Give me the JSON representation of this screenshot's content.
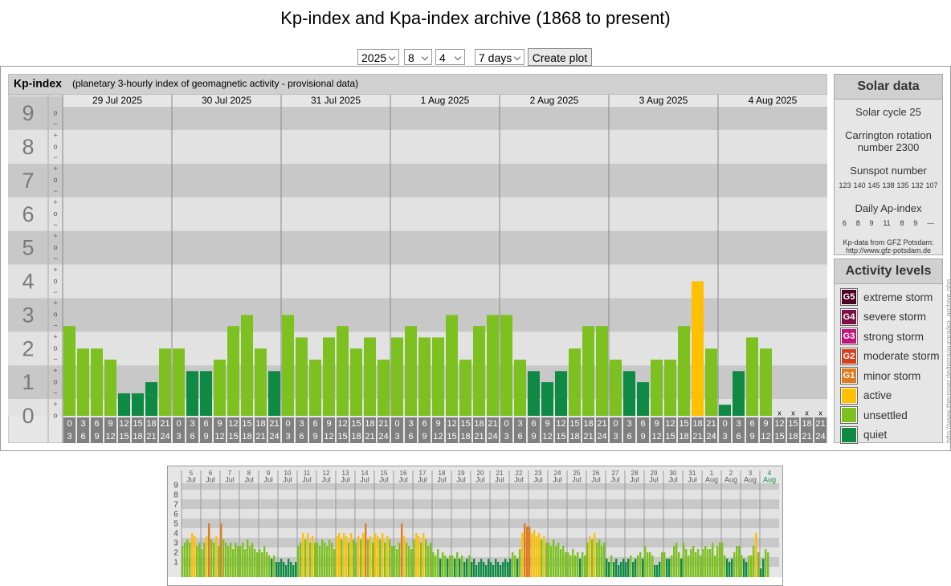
{
  "page": {
    "title": "Kp-index and Kpa-index archive (1868 to present)",
    "controls": {
      "year": "2025",
      "month": "8",
      "day": "4",
      "range": "7 days",
      "button": "Create plot"
    },
    "side_note": "http://www.theusner.de/terra/aurora/kp_archive.php"
  },
  "chart_data": [
    {
      "type": "bar",
      "title": "Kp-index",
      "subtitle": "(planetary 3-hourly index of geomagnetic activity - provisional data)",
      "ylim": [
        0,
        9
      ],
      "yticks": [
        0,
        1,
        2,
        3,
        4,
        5,
        6,
        7,
        8,
        9
      ],
      "subticks": [
        "+",
        "o",
        "−"
      ],
      "dates": [
        "29 Jul 2025",
        "30 Jul 2025",
        "31 Jul 2025",
        "1 Aug 2025",
        "2 Aug 2025",
        "3 Aug 2025",
        "4 Aug 2025"
      ],
      "hours": [
        [
          "0",
          "3"
        ],
        [
          "3",
          "6"
        ],
        [
          "6",
          "9"
        ],
        [
          "9",
          "12"
        ],
        [
          "12",
          "15"
        ],
        [
          "15",
          "18"
        ],
        [
          "18",
          "21"
        ],
        [
          "21",
          "24"
        ]
      ],
      "missing_label": "x",
      "values": [
        [
          2.67,
          2,
          2,
          1.67,
          0.67,
          0.67,
          1,
          2
        ],
        [
          2,
          1.33,
          1.33,
          1.67,
          2.67,
          3,
          2,
          1.33
        ],
        [
          3,
          2.33,
          1.67,
          2.33,
          2.67,
          2,
          2.33,
          1.67
        ],
        [
          2.33,
          2.67,
          2.33,
          2.33,
          3,
          1.67,
          2.67,
          3
        ],
        [
          3,
          1.67,
          1.33,
          1,
          1.33,
          2,
          2.67,
          2.67
        ],
        [
          1.67,
          1.33,
          1,
          1.67,
          1.67,
          2.67,
          4,
          2
        ],
        [
          0.33,
          1.33,
          2.33,
          2,
          null,
          null,
          null,
          null
        ]
      ]
    },
    {
      "type": "bar",
      "ylim": [
        0,
        9
      ],
      "yticks": [
        1,
        2,
        3,
        4,
        5,
        6,
        7,
        8,
        9
      ],
      "dates": [
        [
          "5",
          "Jul"
        ],
        [
          "6",
          "Jul"
        ],
        [
          "7",
          "Jul"
        ],
        [
          "8",
          "Jul"
        ],
        [
          "9",
          "Jul"
        ],
        [
          "10",
          "Jul"
        ],
        [
          "11",
          "Jul"
        ],
        [
          "12",
          "Jul"
        ],
        [
          "13",
          "Jul"
        ],
        [
          "14",
          "Jul"
        ],
        [
          "15",
          "Jul"
        ],
        [
          "16",
          "Jul"
        ],
        [
          "17",
          "Jul"
        ],
        [
          "18",
          "Jul"
        ],
        [
          "19",
          "Jul"
        ],
        [
          "20",
          "Jul"
        ],
        [
          "21",
          "Jul"
        ],
        [
          "22",
          "Jul"
        ],
        [
          "23",
          "Jul"
        ],
        [
          "24",
          "Jul"
        ],
        [
          "25",
          "Jul"
        ],
        [
          "26",
          "Jul"
        ],
        [
          "27",
          "Jul"
        ],
        [
          "28",
          "Jul"
        ],
        [
          "29",
          "Jul"
        ],
        [
          "30",
          "Jul"
        ],
        [
          "31",
          "Jul"
        ],
        [
          "1",
          "Aug"
        ],
        [
          "2",
          "Aug"
        ],
        [
          "3",
          "Aug"
        ],
        [
          "4",
          "Aug"
        ]
      ],
      "values": [
        [
          2.67,
          3,
          3.33,
          3,
          4,
          3.67,
          2.67,
          3
        ],
        [
          2.33,
          3,
          3.67,
          5,
          3.33,
          3,
          3.67,
          2.67
        ],
        [
          5,
          3.33,
          3,
          2.67,
          3,
          2.33,
          3,
          2.67
        ],
        [
          2.67,
          3,
          2.33,
          3.33,
          2.67,
          3,
          2.33,
          2
        ],
        [
          2.33,
          2,
          2.67,
          2,
          1.67,
          1.33,
          1.67,
          1
        ],
        [
          1,
          1.33,
          1,
          0.67,
          1.33,
          1,
          0.67,
          1
        ],
        [
          2.67,
          3,
          4,
          3.33,
          4,
          3,
          3.67,
          3
        ],
        [
          3,
          2.67,
          3.33,
          3,
          2.67,
          3.33,
          3,
          2.33
        ],
        [
          3.67,
          4,
          3.33,
          4,
          3.67,
          3,
          4,
          3.33
        ],
        [
          3,
          3.67,
          3.33,
          4,
          5,
          3.33,
          3.67,
          3
        ],
        [
          4,
          3.67,
          3.33,
          4,
          3,
          3.67,
          3.33,
          2.67
        ],
        [
          2.67,
          2.33,
          3,
          5,
          3.67,
          3,
          2.67,
          2.33
        ],
        [
          3.33,
          4,
          3.67,
          3,
          4,
          3.33,
          2.67,
          3
        ],
        [
          2,
          1.67,
          2.33,
          1.33,
          2,
          1.67,
          1.33,
          1.67
        ],
        [
          1.67,
          1.33,
          2,
          1.33,
          1.67,
          1,
          1.33,
          1.67
        ],
        [
          1,
          1.33,
          0.67,
          1,
          1.33,
          1,
          0.67,
          1.33
        ],
        [
          1,
          0.67,
          1.33,
          1,
          0.67,
          1,
          1.33,
          1
        ],
        [
          1.33,
          2,
          1.67,
          1.33,
          2.33,
          4,
          5,
          4.67
        ],
        [
          4.67,
          4,
          4.33,
          3.67,
          4,
          3.33,
          3.67,
          3
        ],
        [
          3,
          2.67,
          3.33,
          2.67,
          3,
          2.33,
          2.67,
          2
        ],
        [
          2,
          1.67,
          2.33,
          1.67,
          2,
          1.33,
          2,
          1.67
        ],
        [
          3,
          3.67,
          3.33,
          4,
          3,
          3.33,
          2.67,
          3
        ],
        [
          1.33,
          1,
          1.67,
          1,
          1.33,
          0.67,
          1,
          1.33
        ],
        [
          1,
          1.33,
          1.67,
          1,
          1.33,
          1.67,
          2,
          1.33
        ],
        [
          2.67,
          2,
          2,
          1.67,
          0.67,
          0.67,
          1,
          2
        ],
        [
          2,
          1.33,
          1.33,
          1.67,
          2.67,
          3,
          2,
          1.33
        ],
        [
          3,
          2.33,
          1.67,
          2.33,
          2.67,
          2,
          2.33,
          1.67
        ],
        [
          2.33,
          2.67,
          2.33,
          2.33,
          3,
          1.67,
          2.67,
          3
        ],
        [
          3,
          1.67,
          1.33,
          1,
          1.33,
          2,
          2.67,
          2.67
        ],
        [
          1.67,
          1.33,
          1,
          1.67,
          1.67,
          2.67,
          4,
          2
        ],
        [
          0.33,
          1.33,
          2.33,
          2,
          null,
          null,
          null,
          null
        ]
      ]
    }
  ],
  "solar": {
    "title": "Solar data",
    "cycle": "Solar cycle 25",
    "carrington": "Carrington rotation number 2300",
    "sunspot_title": "Sunspot number",
    "sunspots": [
      "123",
      "140",
      "145",
      "138",
      "135",
      "132",
      "107"
    ],
    "ap_title": "Daily Ap-index",
    "ap": [
      "6",
      "8",
      "9",
      "11",
      "8",
      "9",
      "---"
    ],
    "source": "Kp-data from GFZ Potsdam:",
    "source_url": "http://www.gfz-potsdam.de"
  },
  "levels": {
    "title": "Activity levels",
    "items": [
      {
        "badge": "G5",
        "name": "extreme storm",
        "color": "#4b0023"
      },
      {
        "badge": "G4",
        "name": "severe storm",
        "color": "#7a1043"
      },
      {
        "badge": "G3",
        "name": "strong storm",
        "color": "#c0157a"
      },
      {
        "badge": "G2",
        "name": "moderate storm",
        "color": "#d4401e"
      },
      {
        "badge": "G1",
        "name": "minor storm",
        "color": "#e07b1e"
      },
      {
        "name": "active",
        "color": "#ffc000"
      },
      {
        "name": "unsettled",
        "color": "#7dc121"
      },
      {
        "name": "quiet",
        "color": "#0f8a45"
      }
    ]
  }
}
